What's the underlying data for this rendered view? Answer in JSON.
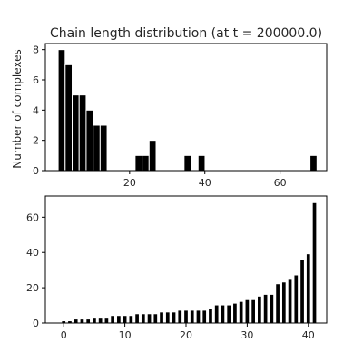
{
  "chart_data": [
    {
      "type": "bar",
      "subtype": "histogram",
      "title": "Chain length distribution (at t = 200000.0)",
      "xlabel": "",
      "ylabel": "Number of complexes",
      "bin_width": 1.86,
      "bin_starts": [
        1.0,
        2.86,
        4.72,
        6.58,
        8.44,
        10.3,
        12.16,
        14.02,
        15.88,
        17.74,
        19.6,
        21.46,
        23.32,
        25.18,
        27.04,
        28.9,
        30.76,
        32.62,
        34.48,
        36.34,
        38.2,
        40.06,
        41.92,
        43.78,
        45.64,
        47.5,
        49.36,
        51.22,
        53.08,
        54.94,
        56.8,
        58.66,
        60.52,
        62.38,
        64.24,
        66.1,
        67.96
      ],
      "values": [
        8,
        7,
        5,
        5,
        4,
        3,
        3,
        0,
        0,
        0,
        0,
        1,
        1,
        2,
        0,
        0,
        0,
        0,
        1,
        0,
        1,
        0,
        0,
        0,
        0,
        0,
        0,
        0,
        0,
        0,
        0,
        0,
        0,
        0,
        0,
        0,
        1
      ],
      "xlim": [
        -2.4,
        72.4
      ],
      "ylim": [
        0,
        8.4
      ],
      "xticks": [
        20,
        40,
        60
      ],
      "yticks": [
        0,
        2,
        4,
        6,
        8
      ],
      "bar_color": "#000000",
      "edge_color": "#ffffff",
      "grid": false
    },
    {
      "type": "bar",
      "title": "",
      "xlabel": "",
      "ylabel": "",
      "x": [
        0,
        1,
        2,
        3,
        4,
        5,
        6,
        7,
        8,
        9,
        10,
        11,
        12,
        13,
        14,
        15,
        16,
        17,
        18,
        19,
        20,
        21,
        22,
        23,
        24,
        25,
        26,
        27,
        28,
        29,
        30,
        31,
        32,
        33,
        34,
        35,
        36,
        37,
        38,
        39,
        40,
        41
      ],
      "values": [
        1,
        1,
        2,
        2,
        2,
        3,
        3,
        3,
        4,
        4,
        4,
        4,
        5,
        5,
        5,
        5,
        6,
        6,
        6,
        7,
        7,
        7,
        7,
        7,
        8,
        10,
        10,
        10,
        11,
        12,
        13,
        13,
        15,
        16,
        16,
        22,
        23,
        25,
        27,
        36,
        39,
        68
      ],
      "xlim": [
        -3,
        43
      ],
      "ylim": [
        0,
        72
      ],
      "xticks": [
        0,
        10,
        20,
        30,
        40
      ],
      "yticks": [
        0,
        20,
        40,
        60
      ],
      "bar_color": "#000000",
      "grid": false
    }
  ]
}
